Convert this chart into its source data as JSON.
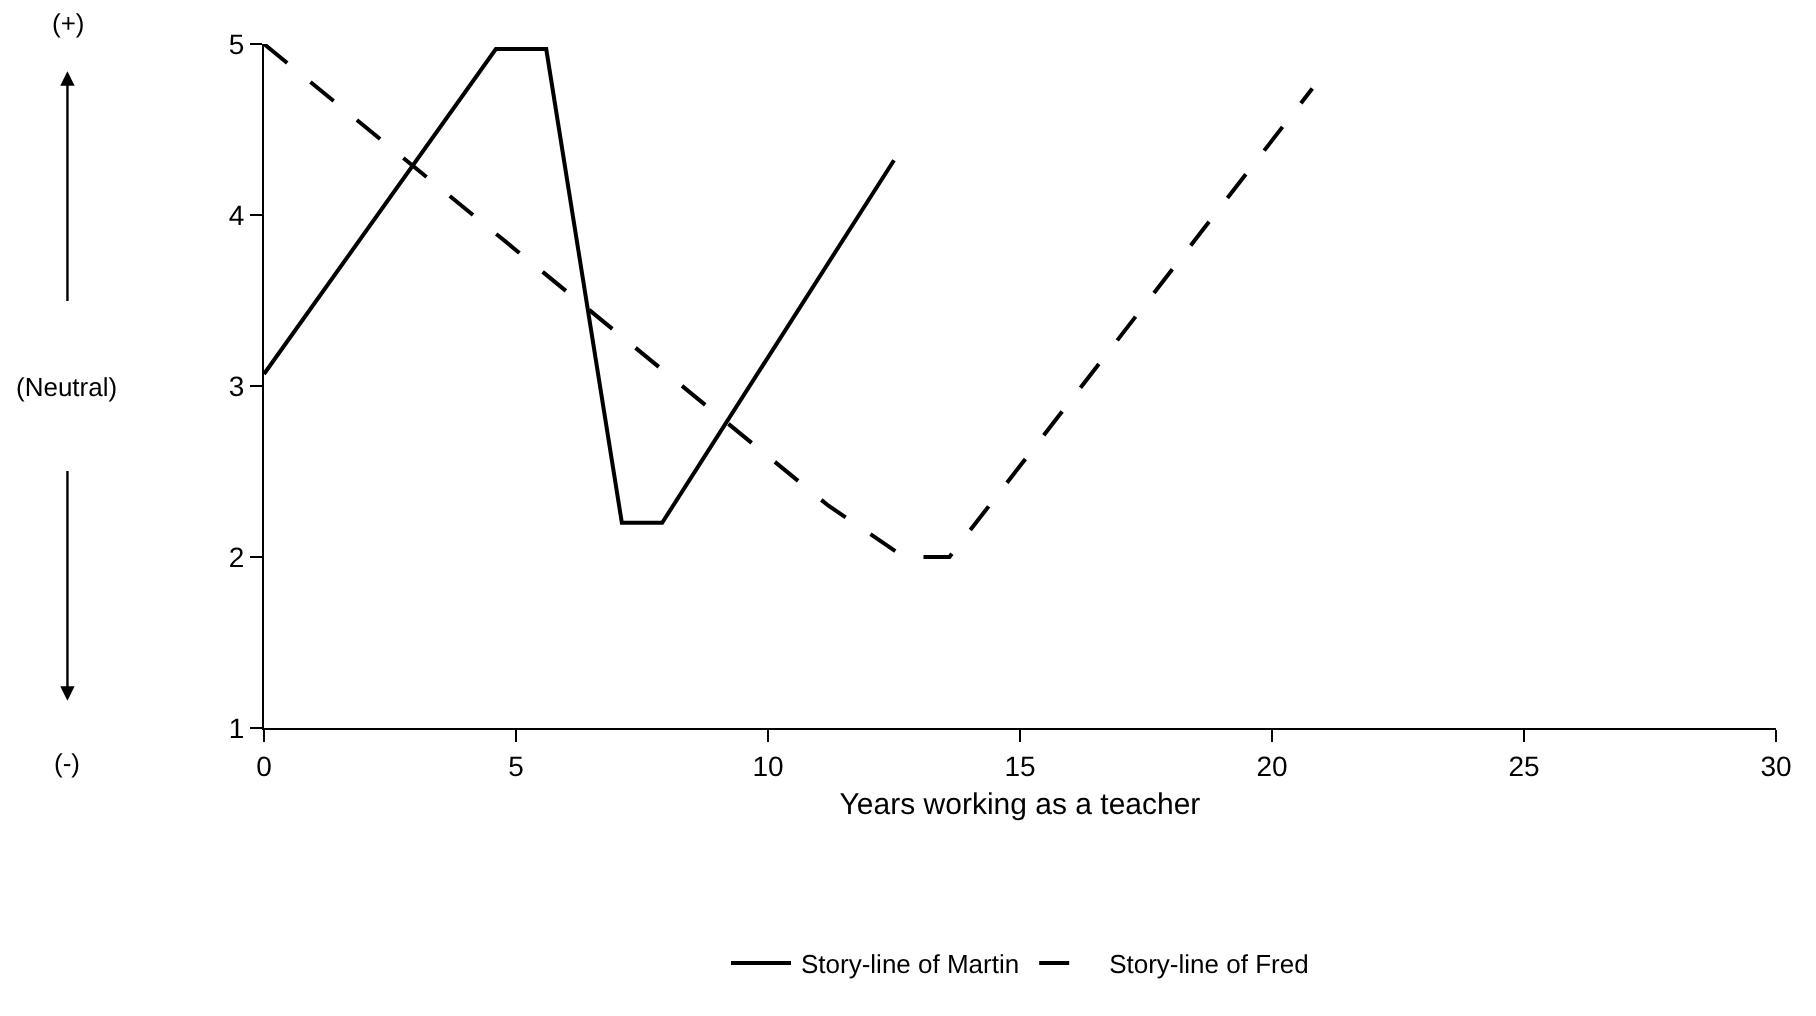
{
  "chart_data": {
    "type": "line",
    "xlabel": "Years working as a teacher",
    "xlim": [
      0,
      30
    ],
    "xticks": [
      0,
      5,
      10,
      15,
      20,
      25,
      30
    ],
    "ylim": [
      1,
      5
    ],
    "yticks": [
      1,
      2,
      3,
      4,
      5
    ],
    "annotations": [
      "(+)",
      "(Neutral)",
      "(-)"
    ],
    "legend": "bottom",
    "marker": "none",
    "series": [
      {
        "name": "Story-line of Martin",
        "color": "#000000",
        "line_style": "solid",
        "x": [
          0,
          4.6,
          5.6,
          7.1,
          7.9,
          12.5
        ],
        "values": [
          3.07,
          4.97,
          4.97,
          2.2,
          2.2,
          4.32
        ]
      },
      {
        "name": "Story-line of Fred",
        "color": "#000000",
        "line_style": "dashed",
        "x": [
          0,
          11.2,
          12.7,
          13.6,
          20.8
        ],
        "values": [
          5,
          2.3,
          2,
          2,
          4.74
        ]
      }
    ]
  }
}
